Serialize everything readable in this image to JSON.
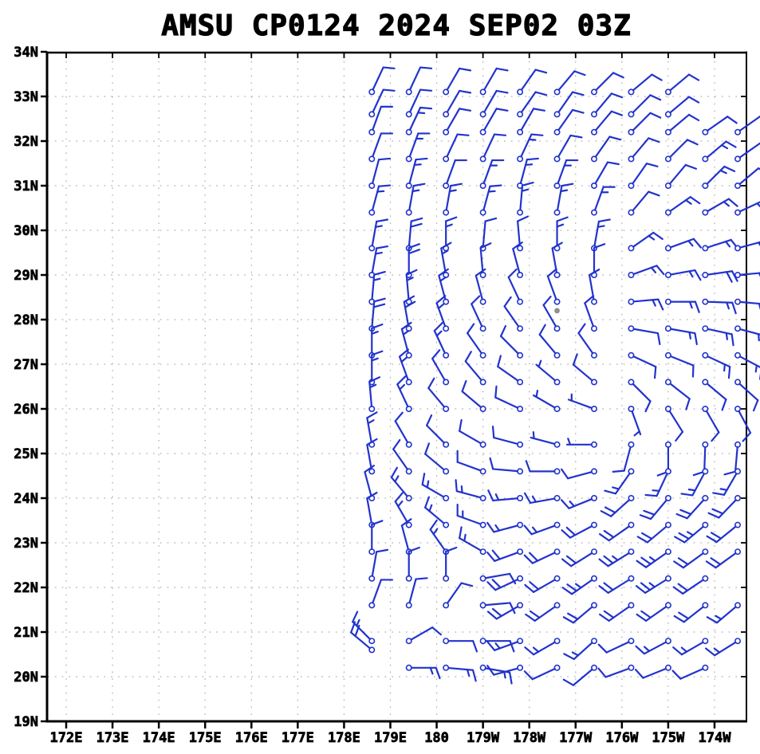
{
  "title": "AMSU CP0124 2024 SEP02 03Z",
  "colors": {
    "barb": "#2233cc",
    "axis": "#000000",
    "grid": "#b3b3b3",
    "center_marker": "#8f8f8f",
    "background": "#ffffff"
  },
  "chart_data": {
    "type": "scatter",
    "subtype": "wind-barbs",
    "title": "AMSU CP0124 2024 SEP02 03Z",
    "grid": true,
    "x_axis": {
      "labels": [
        "172E",
        "173E",
        "174E",
        "175E",
        "176E",
        "177E",
        "178E",
        "179E",
        "180",
        "179W",
        "178W",
        "177W",
        "176W",
        "175W",
        "174W"
      ],
      "lonE_values": [
        172,
        173,
        174,
        175,
        176,
        177,
        178,
        179,
        180,
        181,
        182,
        183,
        184,
        185,
        186
      ],
      "range_lonE": [
        171.55,
        186.69
      ]
    },
    "y_axis": {
      "labels": [
        "19N",
        "20N",
        "21N",
        "22N",
        "23N",
        "24N",
        "25N",
        "26N",
        "27N",
        "28N",
        "29N",
        "30N",
        "31N",
        "32N",
        "33N",
        "34N"
      ],
      "values": [
        19,
        20,
        21,
        22,
        23,
        24,
        25,
        26,
        27,
        28,
        29,
        30,
        31,
        32,
        33,
        34
      ],
      "range": [
        19,
        34
      ]
    },
    "center_marker": {
      "lonE": 182.6,
      "lat": 28.2
    },
    "barb_speed_step_kt": {
      "half_barb": 5,
      "full_barb": 10
    },
    "barbs": [
      [
        178.6,
        33.1,
        25,
        10
      ],
      [
        178.6,
        32.6,
        25,
        10
      ],
      [
        178.6,
        32.2,
        20,
        10
      ],
      [
        178.6,
        31.6,
        20,
        10
      ],
      [
        178.6,
        31.0,
        15,
        10
      ],
      [
        178.6,
        30.4,
        15,
        15
      ],
      [
        178.6,
        29.6,
        10,
        15
      ],
      [
        178.6,
        29.0,
        10,
        15
      ],
      [
        178.6,
        28.4,
        5,
        15
      ],
      [
        178.6,
        27.8,
        5,
        20
      ],
      [
        178.6,
        27.2,
        0,
        15
      ],
      [
        178.6,
        26.6,
        0,
        15
      ],
      [
        178.6,
        26.0,
        355,
        15
      ],
      [
        178.6,
        25.2,
        350,
        15
      ],
      [
        178.6,
        24.6,
        350,
        10
      ],
      [
        178.6,
        24.0,
        345,
        10
      ],
      [
        178.6,
        23.4,
        350,
        10
      ],
      [
        178.6,
        22.8,
        0,
        10
      ],
      [
        178.6,
        22.2,
        10,
        10
      ],
      [
        178.6,
        21.6,
        20,
        10
      ],
      [
        178.6,
        20.8,
        315,
        15
      ],
      [
        178.6,
        20.6,
        310,
        20
      ],
      [
        179.4,
        33.1,
        25,
        10
      ],
      [
        179.4,
        32.6,
        25,
        10
      ],
      [
        179.4,
        32.2,
        25,
        15
      ],
      [
        179.4,
        31.6,
        20,
        15
      ],
      [
        179.4,
        31.0,
        15,
        15
      ],
      [
        179.4,
        30.4,
        10,
        15
      ],
      [
        179.4,
        29.6,
        5,
        20
      ],
      [
        179.4,
        29.0,
        0,
        20
      ],
      [
        179.4,
        28.4,
        355,
        15
      ],
      [
        179.4,
        27.8,
        350,
        20
      ],
      [
        179.4,
        27.2,
        345,
        15
      ],
      [
        179.4,
        26.6,
        340,
        15
      ],
      [
        179.4,
        26.0,
        335,
        15
      ],
      [
        179.4,
        25.2,
        330,
        10
      ],
      [
        179.4,
        24.6,
        325,
        10
      ],
      [
        179.4,
        24.0,
        320,
        15
      ],
      [
        179.4,
        23.4,
        330,
        15
      ],
      [
        179.4,
        22.8,
        345,
        10
      ],
      [
        179.4,
        22.2,
        0,
        10
      ],
      [
        179.4,
        21.6,
        15,
        10
      ],
      [
        179.4,
        20.8,
        60,
        10
      ],
      [
        179.4,
        20.2,
        90,
        15
      ],
      [
        180.2,
        33.1,
        30,
        10
      ],
      [
        180.2,
        32.6,
        30,
        10
      ],
      [
        180.2,
        32.2,
        30,
        10
      ],
      [
        180.2,
        31.6,
        25,
        10
      ],
      [
        180.2,
        31.0,
        20,
        10
      ],
      [
        180.2,
        30.4,
        10,
        15
      ],
      [
        180.2,
        29.6,
        0,
        15
      ],
      [
        180.2,
        29.0,
        350,
        15
      ],
      [
        180.2,
        28.4,
        345,
        15
      ],
      [
        180.2,
        27.8,
        340,
        15
      ],
      [
        180.2,
        27.2,
        335,
        15
      ],
      [
        180.2,
        26.6,
        330,
        10
      ],
      [
        180.2,
        26.0,
        320,
        10
      ],
      [
        180.2,
        25.2,
        315,
        10
      ],
      [
        180.2,
        24.6,
        310,
        10
      ],
      [
        180.2,
        24.0,
        300,
        15
      ],
      [
        180.2,
        23.4,
        310,
        15
      ],
      [
        180.2,
        22.8,
        325,
        15
      ],
      [
        180.2,
        22.2,
        0,
        10
      ],
      [
        180.2,
        21.6,
        35,
        10
      ],
      [
        180.2,
        20.8,
        90,
        10
      ],
      [
        180.2,
        20.2,
        95,
        15
      ],
      [
        181.0,
        33.1,
        30,
        10
      ],
      [
        181.0,
        32.6,
        30,
        10
      ],
      [
        181.0,
        32.2,
        30,
        10
      ],
      [
        181.0,
        31.6,
        25,
        10
      ],
      [
        181.0,
        31.0,
        20,
        15
      ],
      [
        181.0,
        30.4,
        15,
        15
      ],
      [
        181.0,
        29.6,
        5,
        10
      ],
      [
        181.0,
        29.0,
        355,
        10
      ],
      [
        181.0,
        28.4,
        345,
        10
      ],
      [
        181.0,
        27.8,
        335,
        10
      ],
      [
        181.0,
        27.2,
        325,
        10
      ],
      [
        181.0,
        26.6,
        320,
        10
      ],
      [
        181.0,
        26.0,
        310,
        10
      ],
      [
        181.0,
        25.2,
        300,
        10
      ],
      [
        181.0,
        24.6,
        290,
        10
      ],
      [
        181.0,
        24.0,
        285,
        15
      ],
      [
        181.0,
        23.4,
        290,
        15
      ],
      [
        181.0,
        22.8,
        300,
        15
      ],
      [
        181.0,
        22.2,
        80,
        10
      ],
      [
        181.0,
        21.6,
        85,
        10
      ],
      [
        181.0,
        20.8,
        90,
        10
      ],
      [
        181.0,
        20.2,
        100,
        15
      ],
      [
        181.8,
        33.1,
        35,
        10
      ],
      [
        181.8,
        32.6,
        35,
        10
      ],
      [
        181.8,
        32.2,
        30,
        10
      ],
      [
        181.8,
        31.6,
        25,
        15
      ],
      [
        181.8,
        31.0,
        15,
        15
      ],
      [
        181.8,
        30.4,
        5,
        15
      ],
      [
        181.8,
        29.6,
        355,
        10
      ],
      [
        181.8,
        29.0,
        345,
        10
      ],
      [
        181.8,
        28.4,
        335,
        10
      ],
      [
        181.8,
        27.8,
        325,
        10
      ],
      [
        181.8,
        27.2,
        315,
        10
      ],
      [
        181.8,
        26.6,
        305,
        10
      ],
      [
        181.8,
        26.0,
        295,
        10
      ],
      [
        181.8,
        25.2,
        285,
        10
      ],
      [
        181.8,
        24.6,
        275,
        10
      ],
      [
        181.8,
        24.0,
        265,
        15
      ],
      [
        181.8,
        23.4,
        255,
        15
      ],
      [
        181.8,
        22.8,
        250,
        20
      ],
      [
        181.8,
        22.2,
        245,
        20
      ],
      [
        181.8,
        21.6,
        240,
        20
      ],
      [
        181.8,
        20.8,
        250,
        15
      ],
      [
        181.8,
        20.2,
        255,
        10
      ],
      [
        182.6,
        33.1,
        40,
        10
      ],
      [
        182.6,
        32.6,
        35,
        10
      ],
      [
        182.6,
        32.2,
        35,
        10
      ],
      [
        182.6,
        31.6,
        30,
        10
      ],
      [
        182.6,
        31.0,
        20,
        15
      ],
      [
        182.6,
        30.4,
        10,
        15
      ],
      [
        182.6,
        29.6,
        0,
        15
      ],
      [
        182.6,
        29.0,
        350,
        10
      ],
      [
        182.6,
        28.4,
        340,
        10
      ],
      [
        182.6,
        27.8,
        330,
        10
      ],
      [
        182.6,
        27.2,
        320,
        10
      ],
      [
        182.6,
        26.6,
        310,
        5
      ],
      [
        182.6,
        26.0,
        300,
        5
      ],
      [
        182.6,
        25.2,
        285,
        5
      ],
      [
        182.6,
        24.6,
        270,
        10
      ],
      [
        182.6,
        24.0,
        260,
        15
      ],
      [
        182.6,
        23.4,
        250,
        15
      ],
      [
        182.6,
        22.8,
        245,
        20
      ],
      [
        182.6,
        22.2,
        240,
        20
      ],
      [
        182.6,
        21.6,
        235,
        20
      ],
      [
        182.6,
        20.8,
        240,
        15
      ],
      [
        182.6,
        20.2,
        245,
        10
      ],
      [
        183.4,
        33.1,
        45,
        10
      ],
      [
        183.4,
        32.6,
        40,
        10
      ],
      [
        183.4,
        32.2,
        40,
        10
      ],
      [
        183.4,
        31.6,
        35,
        10
      ],
      [
        183.4,
        31.0,
        30,
        10
      ],
      [
        183.4,
        30.4,
        20,
        15
      ],
      [
        183.4,
        29.6,
        10,
        15
      ],
      [
        183.4,
        29.0,
        0,
        10
      ],
      [
        183.4,
        28.4,
        350,
        10
      ],
      [
        183.4,
        27.8,
        340,
        10
      ],
      [
        183.4,
        27.2,
        325,
        10
      ],
      [
        183.4,
        26.6,
        310,
        10
      ],
      [
        183.4,
        26.0,
        290,
        5
      ],
      [
        183.4,
        25.2,
        270,
        5
      ],
      [
        183.4,
        24.6,
        255,
        10
      ],
      [
        183.4,
        24.0,
        248,
        15
      ],
      [
        183.4,
        23.4,
        242,
        20
      ],
      [
        183.4,
        22.8,
        238,
        20
      ],
      [
        183.4,
        22.2,
        235,
        25
      ],
      [
        183.4,
        21.6,
        230,
        20
      ],
      [
        183.4,
        20.8,
        228,
        15
      ],
      [
        183.4,
        20.2,
        230,
        10
      ],
      [
        184.2,
        33.1,
        50,
        10
      ],
      [
        184.2,
        32.6,
        45,
        10
      ],
      [
        184.2,
        32.2,
        45,
        10
      ],
      [
        184.2,
        31.6,
        40,
        10
      ],
      [
        184.2,
        31.0,
        35,
        10
      ],
      [
        184.2,
        30.4,
        40,
        10
      ],
      [
        184.2,
        29.6,
        55,
        15
      ],
      [
        184.2,
        29.0,
        70,
        15
      ],
      [
        184.2,
        28.4,
        85,
        15
      ],
      [
        184.2,
        27.8,
        100,
        10
      ],
      [
        184.2,
        27.2,
        115,
        10
      ],
      [
        184.2,
        26.6,
        135,
        10
      ],
      [
        184.2,
        26.0,
        160,
        5
      ],
      [
        184.2,
        25.2,
        195,
        10
      ],
      [
        184.2,
        24.6,
        215,
        15
      ],
      [
        184.2,
        24.0,
        228,
        20
      ],
      [
        184.2,
        23.4,
        235,
        20
      ],
      [
        184.2,
        22.8,
        238,
        25
      ],
      [
        184.2,
        22.2,
        238,
        20
      ],
      [
        184.2,
        21.6,
        235,
        20
      ],
      [
        184.2,
        20.8,
        245,
        10
      ],
      [
        184.2,
        20.2,
        250,
        10
      ],
      [
        185.0,
        33.1,
        50,
        10
      ],
      [
        185.0,
        32.6,
        50,
        10
      ],
      [
        185.0,
        32.2,
        50,
        10
      ],
      [
        185.0,
        31.6,
        45,
        10
      ],
      [
        185.0,
        31.0,
        40,
        10
      ],
      [
        185.0,
        30.4,
        55,
        15
      ],
      [
        185.0,
        29.6,
        70,
        15
      ],
      [
        185.0,
        29.0,
        80,
        15
      ],
      [
        185.0,
        28.4,
        90,
        15
      ],
      [
        185.0,
        27.8,
        100,
        15
      ],
      [
        185.0,
        27.2,
        112,
        10
      ],
      [
        185.0,
        26.6,
        128,
        10
      ],
      [
        185.0,
        26.0,
        148,
        10
      ],
      [
        185.0,
        25.2,
        180,
        10
      ],
      [
        185.0,
        24.6,
        205,
        15
      ],
      [
        185.0,
        24.0,
        220,
        20
      ],
      [
        185.0,
        23.4,
        230,
        20
      ],
      [
        185.0,
        22.8,
        235,
        25
      ],
      [
        185.0,
        22.2,
        238,
        25
      ],
      [
        185.0,
        21.6,
        235,
        20
      ],
      [
        185.0,
        20.8,
        242,
        15
      ],
      [
        185.0,
        20.2,
        248,
        10
      ],
      [
        185.8,
        32.2,
        55,
        10
      ],
      [
        185.8,
        31.6,
        50,
        15
      ],
      [
        185.8,
        31.0,
        45,
        15
      ],
      [
        185.8,
        30.4,
        60,
        15
      ],
      [
        185.8,
        29.6,
        72,
        15
      ],
      [
        185.8,
        29.0,
        82,
        20
      ],
      [
        185.8,
        28.4,
        92,
        15
      ],
      [
        185.8,
        27.8,
        102,
        15
      ],
      [
        185.8,
        27.2,
        115,
        15
      ],
      [
        185.8,
        26.6,
        130,
        10
      ],
      [
        185.8,
        26.0,
        150,
        10
      ],
      [
        185.8,
        25.2,
        182,
        10
      ],
      [
        185.8,
        24.6,
        208,
        15
      ],
      [
        185.8,
        24.0,
        222,
        20
      ],
      [
        185.8,
        23.4,
        230,
        25
      ],
      [
        185.8,
        22.8,
        234,
        20
      ],
      [
        185.8,
        22.2,
        236,
        20
      ],
      [
        185.8,
        21.6,
        232,
        20
      ],
      [
        185.8,
        20.8,
        240,
        15
      ],
      [
        185.8,
        20.2,
        246,
        10
      ],
      [
        186.5,
        32.2,
        55,
        10
      ],
      [
        186.5,
        31.6,
        55,
        10
      ],
      [
        186.5,
        31.0,
        50,
        10
      ],
      [
        186.5,
        30.4,
        65,
        15
      ],
      [
        186.5,
        29.6,
        75,
        20
      ],
      [
        186.5,
        29.0,
        85,
        20
      ],
      [
        186.5,
        28.4,
        95,
        15
      ],
      [
        186.5,
        27.8,
        105,
        15
      ],
      [
        186.5,
        27.2,
        118,
        15
      ],
      [
        186.5,
        26.6,
        132,
        10
      ],
      [
        186.5,
        26.0,
        152,
        10
      ],
      [
        186.5,
        25.2,
        185,
        10
      ],
      [
        186.5,
        24.6,
        210,
        15
      ],
      [
        186.5,
        24.0,
        224,
        20
      ],
      [
        186.5,
        23.4,
        231,
        20
      ],
      [
        186.5,
        22.8,
        234,
        20
      ],
      [
        186.5,
        21.6,
        230,
        15
      ],
      [
        186.5,
        20.8,
        238,
        15
      ]
    ]
  }
}
